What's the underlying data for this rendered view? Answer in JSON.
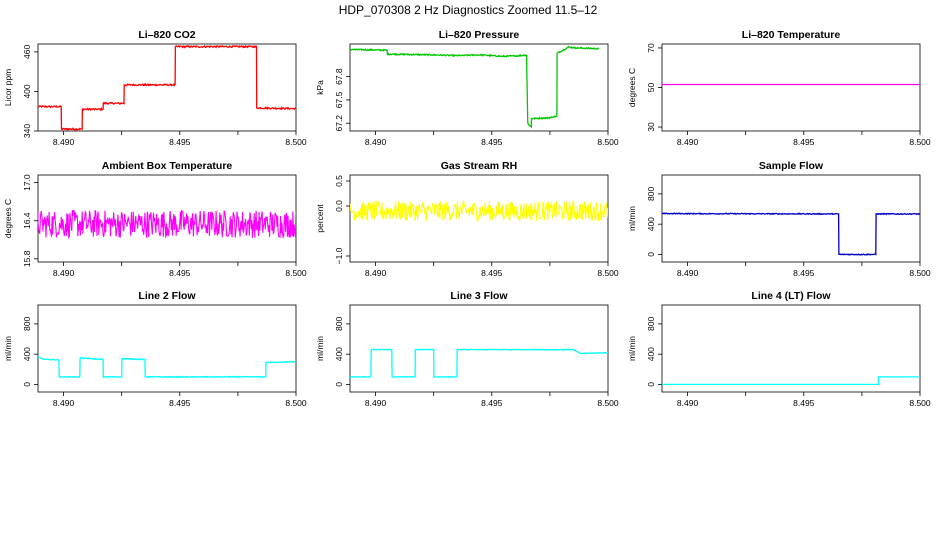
{
  "title": "HDP_070308  2 Hz Diagnostics Zoomed 11.5–12",
  "chart_data": [
    {
      "type": "line",
      "title": "Li–820 CO2",
      "ylabel": "Licor ppm",
      "color": "#ff0000",
      "xlim": [
        8.4889,
        8.5
      ],
      "ylim": [
        340,
        472
      ],
      "xticks": [
        8.49,
        8.495,
        8.5
      ],
      "xtick_labels": [
        "8.490",
        "8.495",
        "8.500"
      ],
      "yticks": [
        340,
        400,
        460
      ],
      "ytick_labels": [
        "340",
        "400",
        "460"
      ],
      "series": [
        {
          "noise": 1.2,
          "x": [
            8.4889,
            8.4899,
            8.48991,
            8.4908,
            8.49081,
            8.4917,
            8.49171,
            8.4926,
            8.49261,
            8.4948,
            8.49481,
            8.4983,
            8.49831,
            8.5
          ],
          "y": [
            377,
            377,
            343,
            343,
            373,
            373,
            382,
            382,
            410,
            410,
            468,
            468,
            375,
            374
          ]
        }
      ]
    },
    {
      "type": "line",
      "title": "Li–820 Pressure",
      "ylabel": "kPa",
      "color": "#00c800",
      "xlim": [
        8.4889,
        8.5
      ],
      "ylim": [
        67.1,
        68.22
      ],
      "xticks": [
        8.49,
        8.495,
        8.5
      ],
      "xtick_labels": [
        "8.490",
        "8.495",
        "8.500"
      ],
      "yticks": [
        67.2,
        67.5,
        67.8
      ],
      "ytick_labels": [
        "67.2",
        "67.5",
        "67.8"
      ],
      "series": [
        {
          "noise": 0.008,
          "x": [
            8.4889,
            8.4905,
            8.49051,
            8.4925,
            8.4935,
            8.4945,
            8.4955,
            8.4962,
            8.4965,
            8.49651,
            8.49655,
            8.4967,
            8.49671,
            8.4975,
            8.4976,
            8.4978,
            8.49781,
            8.4983,
            8.4986,
            8.4996
          ],
          "y": [
            68.15,
            68.14,
            68.09,
            68.08,
            68.07,
            68.08,
            68.06,
            68.07,
            68.08,
            67.8,
            67.2,
            67.15,
            67.26,
            67.27,
            67.28,
            67.29,
            68.1,
            68.18,
            68.17,
            68.16
          ]
        }
      ]
    },
    {
      "type": "line",
      "title": "Li–820 Temperature",
      "ylabel": "degrees C",
      "color": "#ff00ff",
      "xlim": [
        8.4889,
        8.5
      ],
      "ylim": [
        28,
        72
      ],
      "xticks": [
        8.49,
        8.495,
        8.5
      ],
      "xtick_labels": [
        "8.490",
        "8.495",
        "8.500"
      ],
      "yticks": [
        30,
        50,
        70
      ],
      "ytick_labels": [
        "30",
        "50",
        "70"
      ],
      "series": [
        {
          "noise": 0,
          "x": [
            8.4889,
            8.5
          ],
          "y": [
            51.5,
            51.5
          ]
        }
      ]
    },
    {
      "type": "line",
      "title": "Ambient Box Temperature",
      "ylabel": "degrees C",
      "color": "#ff00ff",
      "xlim": [
        8.4889,
        8.5
      ],
      "ylim": [
        15.75,
        17.12
      ],
      "xticks": [
        8.49,
        8.495,
        8.5
      ],
      "xtick_labels": [
        "8.490",
        "8.495",
        "8.500"
      ],
      "yticks": [
        15.8,
        16.4,
        17.0
      ],
      "ytick_labels": [
        "15.8",
        "16.4",
        "17.0"
      ],
      "series": [
        {
          "noise": 0.22,
          "x": [
            8.4889,
            8.5
          ],
          "y": [
            16.35,
            16.35
          ]
        }
      ]
    },
    {
      "type": "line",
      "title": "Gas Stream RH",
      "ylabel": "percent",
      "color": "#ffff00",
      "xlim": [
        8.4889,
        8.5
      ],
      "ylim": [
        -1.12,
        0.62
      ],
      "xticks": [
        8.49,
        8.495,
        8.5
      ],
      "xtick_labels": [
        "8.490",
        "8.495",
        "8.500"
      ],
      "yticks": [
        -1.0,
        0.0,
        0.5
      ],
      "ytick_labels": [
        "−1.0",
        "0.0",
        "0.5"
      ],
      "series": [
        {
          "noise": 0.2,
          "x": [
            8.4889,
            8.5
          ],
          "y": [
            -0.1,
            -0.1
          ]
        }
      ]
    },
    {
      "type": "line",
      "title": "Sample Flow",
      "ylabel": "ml/min",
      "color": "#0000c8",
      "xlim": [
        8.4889,
        8.5
      ],
      "ylim": [
        -100,
        1050
      ],
      "xticks": [
        8.49,
        8.495,
        8.5
      ],
      "xtick_labels": [
        "8.490",
        "8.495",
        "8.500"
      ],
      "yticks": [
        0,
        400,
        800
      ],
      "ytick_labels": [
        "0",
        "400",
        "800"
      ],
      "series": [
        {
          "noise": 6,
          "x": [
            8.4889,
            8.4965,
            8.49651,
            8.4981,
            8.49811,
            8.5
          ],
          "y": [
            540,
            535,
            0,
            0,
            535,
            535
          ]
        }
      ]
    },
    {
      "type": "line",
      "title": "Line 2 Flow",
      "ylabel": "ml/min",
      "color": "#00ffff",
      "xlim": [
        8.4889,
        8.5
      ],
      "ylim": [
        -100,
        1050
      ],
      "xticks": [
        8.49,
        8.495,
        8.5
      ],
      "xtick_labels": [
        "8.490",
        "8.495",
        "8.500"
      ],
      "yticks": [
        0,
        400,
        800
      ],
      "ytick_labels": [
        "0",
        "400",
        "800"
      ],
      "series": [
        {
          "noise": 5,
          "x": [
            8.4889,
            8.4892,
            8.4898,
            8.48981,
            8.4907,
            8.49071,
            8.4917,
            8.49171,
            8.4925,
            8.49251,
            8.4935,
            8.49351,
            8.4987,
            8.49871,
            8.5
          ],
          "y": [
            360,
            330,
            325,
            100,
            100,
            350,
            330,
            100,
            100,
            340,
            330,
            100,
            100,
            290,
            300
          ]
        }
      ]
    },
    {
      "type": "line",
      "title": "Line 3 Flow",
      "ylabel": "ml/min",
      "color": "#00ffff",
      "xlim": [
        8.4889,
        8.5
      ],
      "ylim": [
        -100,
        1050
      ],
      "xticks": [
        8.49,
        8.495,
        8.5
      ],
      "xtick_labels": [
        "8.490",
        "8.495",
        "8.500"
      ],
      "yticks": [
        0,
        400,
        800
      ],
      "ytick_labels": [
        "0",
        "400",
        "800"
      ],
      "series": [
        {
          "noise": 4,
          "x": [
            8.4889,
            8.4898,
            8.48981,
            8.4907,
            8.49071,
            8.4917,
            8.49171,
            8.4925,
            8.49251,
            8.4935,
            8.49351,
            8.4985,
            8.4988,
            8.5
          ],
          "y": [
            100,
            100,
            460,
            460,
            100,
            100,
            460,
            460,
            100,
            100,
            460,
            460,
            410,
            420
          ]
        }
      ]
    },
    {
      "type": "line",
      "title": "Line 4 (LT) Flow",
      "ylabel": "ml/min",
      "color": "#00ffff",
      "xlim": [
        8.4889,
        8.5
      ],
      "ylim": [
        -100,
        1050
      ],
      "xticks": [
        8.49,
        8.495,
        8.5
      ],
      "xtick_labels": [
        "8.490",
        "8.495",
        "8.500"
      ],
      "yticks": [
        0,
        400,
        800
      ],
      "ytick_labels": [
        "0",
        "400",
        "800"
      ],
      "series": [
        {
          "noise": 0,
          "x": [
            8.4889,
            8.4982,
            8.49821,
            8.5
          ],
          "y": [
            0,
            0,
            100,
            100
          ]
        }
      ]
    }
  ]
}
